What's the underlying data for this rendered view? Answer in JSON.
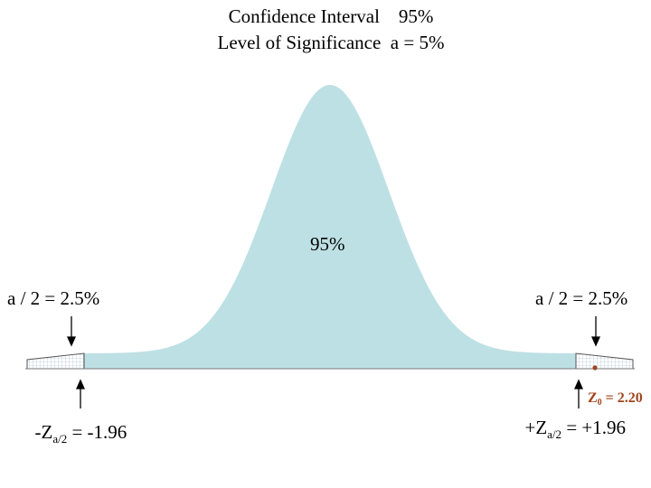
{
  "title": {
    "line1": "Confidence Interval    95%",
    "line2": "Level of Significance  a = 5%"
  },
  "center_label": "95%",
  "left_tail_label": "a / 2 = 2.5%",
  "right_tail_label": "a / 2 = 2.5%",
  "left_critical": {
    "prefix": "-Z",
    "sub": "a/2",
    "value": " = -1.96"
  },
  "right_critical": {
    "prefix": "+Z",
    "sub": "a/2",
    "value": " = +1.96"
  },
  "test_statistic": {
    "prefix": "Z",
    "sub": "0",
    "value": " = 2.20"
  },
  "colors": {
    "acceptance": "#bde0e4",
    "tail_grid": "#9fb6c8",
    "test_marker": "#a0461e"
  }
}
